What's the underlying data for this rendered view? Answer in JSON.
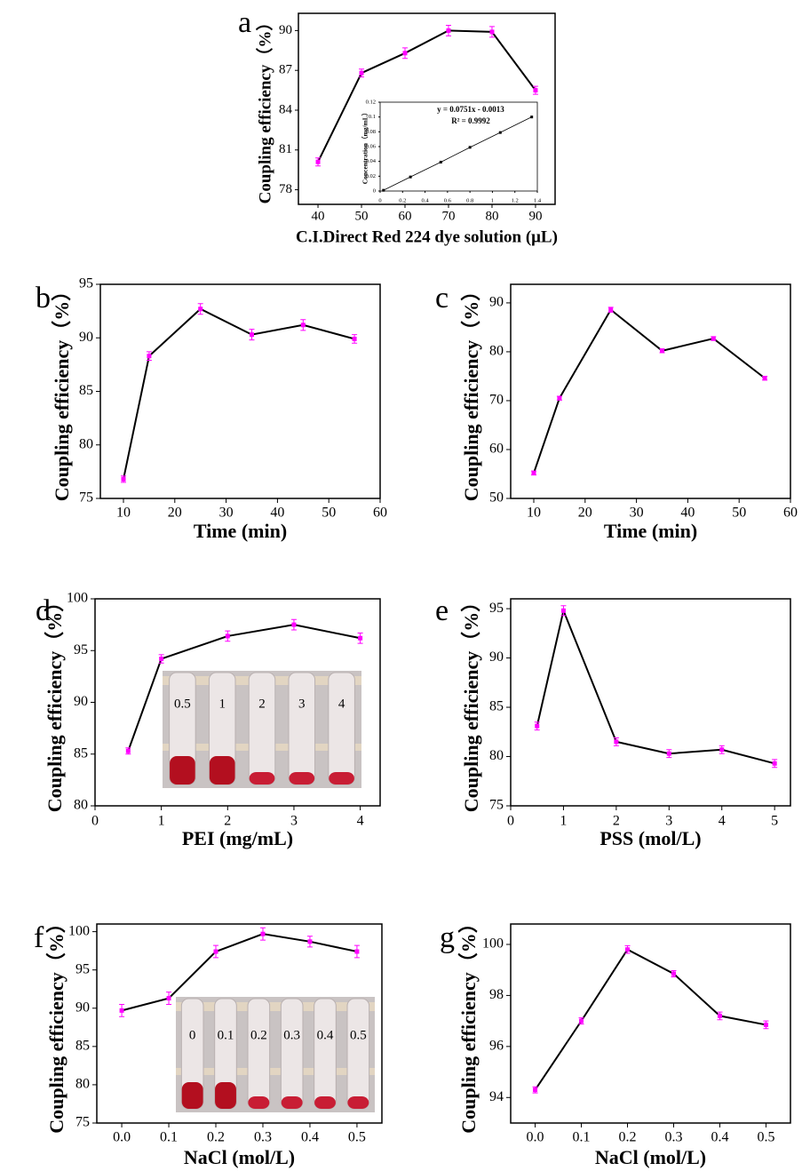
{
  "chart_data": [
    {
      "type": "line",
      "label": "a",
      "ylabel": "Coupling efficiency（%）",
      "xlabel": "C.I.Direct Red 224 dye solution (μL)",
      "x": [
        40,
        50,
        60,
        70,
        80,
        90
      ],
      "values": [
        80.1,
        86.8,
        88.3,
        90.0,
        89.9,
        85.5
      ],
      "errors": [
        0.3,
        0.3,
        0.4,
        0.4,
        0.4,
        0.3
      ],
      "color": "#000000",
      "marker_color": "#ff00ff",
      "xlim": [
        35.5,
        94.5
      ],
      "ylim": [
        76.9,
        91.3
      ],
      "xticks": [
        40,
        50,
        60,
        70,
        80,
        90
      ],
      "yticks": [
        78,
        81,
        84,
        87,
        90
      ]
    },
    {
      "type": "line",
      "ylabel": "Concentration（mg/mL）",
      "equation": "y = 0.0751x - 0.0013",
      "r_squared": "R² = 0.9992",
      "x": [
        0.03,
        0.27,
        0.54,
        0.8,
        1.07,
        1.35
      ],
      "values": [
        0.001,
        0.019,
        0.039,
        0.059,
        0.079,
        0.1
      ],
      "color": "#000000",
      "marker_color": "#000000",
      "xlim": [
        0,
        1.4
      ],
      "ylim": [
        0,
        0.12
      ],
      "xticks": [
        0,
        0.2,
        0.4,
        0.6,
        0.8,
        1,
        1.2,
        1.4
      ],
      "yticks": [
        0,
        0.02,
        0.04,
        0.06,
        0.08,
        0.1,
        0.12
      ]
    },
    {
      "type": "line",
      "label": "b",
      "ylabel": "Coupling efficiency（%）",
      "xlabel": "Time  (min)",
      "x": [
        10,
        15,
        25,
        35,
        45,
        55
      ],
      "values": [
        76.8,
        88.3,
        92.7,
        90.3,
        91.2,
        89.9
      ],
      "errors": [
        0.3,
        0.4,
        0.5,
        0.5,
        0.5,
        0.4
      ],
      "color": "#000000",
      "marker_color": "#ff00ff",
      "xlim": [
        5.5,
        60
      ],
      "ylim": [
        75,
        95
      ],
      "xticks": [
        10,
        20,
        30,
        40,
        50,
        60
      ],
      "yticks": [
        75,
        80,
        85,
        90,
        95
      ]
    },
    {
      "type": "line",
      "label": "c",
      "ylabel": "Coupling efficiency（%）",
      "xlabel": "Time  (min)",
      "x": [
        10,
        15,
        25,
        35,
        45,
        55
      ],
      "values": [
        55.2,
        70.5,
        88.6,
        80.2,
        82.7,
        74.6
      ],
      "errors": [
        0.4,
        0.4,
        0.5,
        0.4,
        0.4,
        0.4
      ],
      "color": "#000000",
      "marker_color": "#ff00ff",
      "xlim": [
        5.5,
        60
      ],
      "ylim": [
        50,
        93.8
      ],
      "xticks": [
        10,
        20,
        30,
        40,
        50,
        60
      ],
      "yticks": [
        50,
        60,
        70,
        80,
        90
      ]
    },
    {
      "type": "line",
      "label": "d",
      "ylabel": "Coupling efficiency（%）",
      "xlabel": "PEI (mg/mL)",
      "x": [
        0.5,
        1,
        2,
        3,
        4
      ],
      "values": [
        85.3,
        94.2,
        96.4,
        97.5,
        96.2
      ],
      "errors": [
        0.3,
        0.4,
        0.5,
        0.5,
        0.5
      ],
      "color": "#000000",
      "marker_color": "#ff00ff",
      "xlim": [
        0,
        4.3
      ],
      "ylim": [
        80,
        100
      ],
      "xticks": [
        0,
        1,
        2,
        3,
        4
      ],
      "yticks": [
        80,
        85,
        90,
        95,
        100
      ],
      "inset_labels": [
        "0.5",
        "1",
        "2",
        "3",
        "4"
      ]
    },
    {
      "type": "line",
      "label": "e",
      "ylabel": "Coupling efficiency（%）",
      "xlabel": "PSS (mol/L)",
      "x": [
        0.5,
        1,
        2,
        3,
        4,
        5
      ],
      "values": [
        83.1,
        94.8,
        81.5,
        80.3,
        80.7,
        79.3
      ],
      "errors": [
        0.4,
        0.5,
        0.4,
        0.4,
        0.4,
        0.4
      ],
      "color": "#000000",
      "marker_color": "#ff00ff",
      "xlim": [
        0,
        5.3
      ],
      "ylim": [
        75,
        96
      ],
      "xticks": [
        0,
        1,
        2,
        3,
        4,
        5
      ],
      "yticks": [
        75,
        80,
        85,
        90,
        95
      ]
    },
    {
      "type": "line",
      "label": "f",
      "ylabel": "Coupling efficiency（%）",
      "xlabel": "NaCl (mol/L)",
      "x": [
        0,
        0.1,
        0.2,
        0.3,
        0.4,
        0.5
      ],
      "values": [
        89.7,
        91.3,
        97.4,
        99.7,
        98.7,
        97.4
      ],
      "errors": [
        0.8,
        0.8,
        0.8,
        0.8,
        0.7,
        0.8
      ],
      "color": "#000000",
      "marker_color": "#ff00ff",
      "xlim": [
        -0.053,
        0.553
      ],
      "ylim": [
        75,
        101
      ],
      "xticks": [
        {
          "value": 0,
          "label": "0.0"
        },
        0.1,
        0.2,
        0.3,
        0.4,
        0.5
      ],
      "yticks": [
        75,
        80,
        85,
        90,
        95,
        100
      ],
      "inset_labels": [
        "0",
        "0.1",
        "0.2",
        "0.3",
        "0.4",
        "0.5"
      ]
    },
    {
      "type": "line",
      "label": "g",
      "ylabel": "Coupling efficiency（%）",
      "xlabel": "NaCl (mol/L)",
      "x": [
        0,
        0.1,
        0.2,
        0.3,
        0.4,
        0.5
      ],
      "values": [
        94.3,
        97.0,
        99.8,
        98.85,
        97.2,
        96.85
      ],
      "errors": [
        0.12,
        0.12,
        0.15,
        0.12,
        0.15,
        0.15
      ],
      "color": "#000000",
      "marker_color": "#ff00ff",
      "xlim": [
        -0.053,
        0.553
      ],
      "ylim": [
        93,
        100.8
      ],
      "xticks": [
        {
          "value": 0,
          "label": "0.0"
        },
        0.1,
        0.2,
        0.3,
        0.4,
        0.5
      ],
      "yticks": [
        94,
        96,
        98,
        100
      ]
    }
  ]
}
